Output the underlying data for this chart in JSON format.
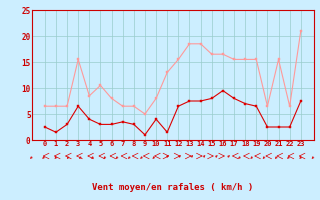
{
  "x": [
    0,
    1,
    2,
    3,
    4,
    5,
    6,
    7,
    8,
    9,
    10,
    11,
    12,
    13,
    14,
    15,
    16,
    17,
    18,
    19,
    20,
    21,
    22,
    23
  ],
  "y_mean": [
    2.5,
    1.5,
    3.0,
    6.5,
    4.0,
    3.0,
    3.0,
    3.5,
    3.0,
    1.0,
    4.0,
    1.5,
    6.5,
    7.5,
    7.5,
    8.0,
    9.5,
    8.0,
    7.0,
    6.5,
    2.5,
    2.5,
    2.5,
    7.5
  ],
  "y_gust": [
    6.5,
    6.5,
    6.5,
    15.5,
    8.5,
    10.5,
    8.0,
    6.5,
    6.5,
    5.0,
    8.0,
    13.0,
    15.5,
    18.5,
    18.5,
    16.5,
    16.5,
    15.5,
    15.5,
    15.5,
    6.5,
    15.5,
    6.5,
    21.0
  ],
  "mean_color": "#dd0000",
  "gust_color": "#ff9999",
  "bg_color": "#cceeff",
  "grid_color": "#99cccc",
  "xlabel": "Vent moyen/en rafales ( km/h )",
  "xlabel_color": "#cc0000",
  "tick_color": "#cc0000",
  "axis_color": "#cc0000",
  "ylim": [
    0,
    25
  ],
  "yticks": [
    0,
    5,
    10,
    15,
    20,
    25
  ],
  "wind_dirs": [
    225,
    225,
    225,
    225,
    225,
    225,
    225,
    225,
    225,
    225,
    225,
    45,
    45,
    45,
    45,
    45,
    45,
    225,
    225,
    225,
    225,
    225,
    225,
    225
  ]
}
